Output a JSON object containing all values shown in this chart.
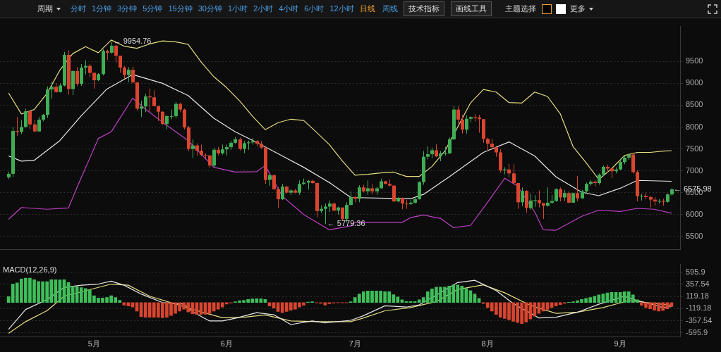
{
  "chart_data": [
    {
      "type": "candlestick",
      "x": [
        "--04-11",
        "--04-12",
        "--04-13",
        "--04-14",
        "--04-15",
        "--04-16",
        "--04-17",
        "--04-18",
        "--04-19",
        "--04-20",
        "--04-21",
        "--04-22",
        "--04-23",
        "--04-24",
        "--04-25",
        "--04-26",
        "--04-27",
        "--04-28",
        "--04-29",
        "--04-30",
        "--05-01",
        "--05-02",
        "--05-03",
        "--05-04",
        "--05-05",
        "--05-06",
        "--05-07",
        "--05-08",
        "--05-09",
        "--05-10",
        "--05-11",
        "--05-12",
        "--05-13",
        "--05-14",
        "--05-15",
        "--05-16",
        "--05-17",
        "--05-18",
        "--05-19",
        "--05-20",
        "--05-21",
        "--05-22",
        "--05-23",
        "--05-24",
        "--05-25",
        "--05-26",
        "--05-27",
        "--05-28",
        "--05-29",
        "--05-30",
        "--05-31",
        "--06-01",
        "--06-02",
        "--06-03",
        "--06-04",
        "--06-05",
        "--06-06",
        "--06-07",
        "--06-08",
        "--06-09",
        "--06-10",
        "--06-11",
        "--06-12",
        "--06-13",
        "--06-14",
        "--06-15",
        "--06-16",
        "--06-17",
        "--06-18",
        "--06-19",
        "--06-20",
        "--06-21",
        "--06-22",
        "--06-23",
        "--06-24",
        "--06-25",
        "--06-26",
        "--06-27",
        "--06-28",
        "--06-29",
        "--06-30",
        "--07-01",
        "--07-02",
        "--07-03",
        "--07-04",
        "--07-05",
        "--07-06",
        "--07-07",
        "--07-08",
        "--07-09",
        "--07-10",
        "--07-11",
        "--07-12",
        "--07-13",
        "--07-14",
        "--07-15",
        "--07-16",
        "--07-17",
        "--07-18",
        "--07-19",
        "--07-20",
        "--07-21",
        "--07-22",
        "--07-23",
        "--07-24",
        "--07-25",
        "--07-26",
        "--07-27",
        "--07-28",
        "--07-29",
        "--07-30",
        "--07-31",
        "--08-01",
        "--08-02",
        "--08-03",
        "--08-04",
        "--08-05",
        "--08-06",
        "--08-07",
        "--08-08",
        "--08-09",
        "--08-10",
        "--08-11",
        "--08-12",
        "--08-13",
        "--08-14",
        "--08-15",
        "--08-16",
        "--08-17",
        "--08-18",
        "--08-19",
        "--08-20",
        "--08-21",
        "--08-22",
        "--08-23",
        "--08-24",
        "--08-25",
        "--08-26",
        "--08-27",
        "--08-28",
        "--08-29",
        "--08-30",
        "--08-31",
        "--09-01",
        "--09-02",
        "--09-03",
        "--09-04",
        "--09-05",
        "--09-06",
        "--09-07",
        "--09-08",
        "--09-09",
        "--09-10",
        "--09-11",
        "--09-12",
        "--09-13"
      ],
      "ohlc": [
        [
          6850,
          6980,
          6810,
          6930
        ],
        [
          6930,
          8000,
          6860,
          7910
        ],
        [
          7910,
          8230,
          7800,
          7890
        ],
        [
          7890,
          8160,
          7840,
          8000
        ],
        [
          8000,
          8420,
          7990,
          8360
        ],
        [
          8360,
          8380,
          7950,
          8060
        ],
        [
          8060,
          8160,
          7880,
          7900
        ],
        [
          7900,
          8230,
          7890,
          8170
        ],
        [
          8170,
          8300,
          8130,
          8280
        ],
        [
          8280,
          8930,
          8210,
          8860
        ],
        [
          8860,
          9030,
          8650,
          8920
        ],
        [
          8920,
          9000,
          8780,
          8800
        ],
        [
          8800,
          9000,
          8790,
          8950
        ],
        [
          8950,
          9720,
          8930,
          9650
        ],
        [
          9650,
          9750,
          8740,
          8870
        ],
        [
          8870,
          9300,
          8730,
          9280
        ],
        [
          9280,
          9370,
          8940,
          8990
        ],
        [
          8990,
          9440,
          8940,
          9360
        ],
        [
          9360,
          9530,
          9200,
          9400
        ],
        [
          9400,
          9440,
          9140,
          9240
        ],
        [
          9240,
          9250,
          8880,
          9070
        ],
        [
          9070,
          9230,
          9050,
          9210
        ],
        [
          9210,
          9780,
          9180,
          9740
        ],
        [
          9740,
          9770,
          9530,
          9700
        ],
        [
          9700,
          9954.76,
          9680,
          9860
        ],
        [
          9860,
          9880,
          9480,
          9630
        ],
        [
          9630,
          9630,
          9240,
          9360
        ],
        [
          9360,
          9400,
          9100,
          9190
        ],
        [
          9190,
          9370,
          9030,
          9310
        ],
        [
          9310,
          9380,
          9000,
          9020
        ],
        [
          9020,
          9030,
          8380,
          8420
        ],
        [
          8420,
          8600,
          8230,
          8470
        ],
        [
          8470,
          8760,
          8340,
          8700
        ],
        [
          8700,
          8880,
          8350,
          8680
        ],
        [
          8680,
          8840,
          8470,
          8480
        ],
        [
          8480,
          8480,
          8140,
          8350
        ],
        [
          8350,
          8360,
          8050,
          8070
        ],
        [
          8070,
          8270,
          7950,
          8250
        ],
        [
          8250,
          8400,
          8180,
          8250
        ],
        [
          8250,
          8570,
          8200,
          8530
        ],
        [
          8530,
          8560,
          8340,
          8400
        ],
        [
          8400,
          8420,
          7950,
          7990
        ],
        [
          7990,
          8030,
          7450,
          7500
        ],
        [
          7500,
          7720,
          7290,
          7580
        ],
        [
          7580,
          7630,
          7350,
          7460
        ],
        [
          7460,
          7600,
          7340,
          7360
        ],
        [
          7360,
          7400,
          7260,
          7350
        ],
        [
          7350,
          7360,
          7070,
          7120
        ],
        [
          7120,
          7530,
          7070,
          7480
        ],
        [
          7480,
          7550,
          7350,
          7400
        ],
        [
          7400,
          7600,
          7370,
          7490
        ],
        [
          7490,
          7600,
          7350,
          7540
        ],
        [
          7540,
          7690,
          7480,
          7640
        ],
        [
          7640,
          7770,
          7620,
          7720
        ],
        [
          7720,
          7760,
          7460,
          7500
        ],
        [
          7500,
          7680,
          7400,
          7630
        ],
        [
          7630,
          7690,
          7480,
          7650
        ],
        [
          7650,
          7750,
          7600,
          7680
        ],
        [
          7680,
          7700,
          7560,
          7620
        ],
        [
          7620,
          7680,
          7500,
          7530
        ],
        [
          7530,
          7530,
          6700,
          6790
        ],
        [
          6790,
          6920,
          6650,
          6900
        ],
        [
          6900,
          6910,
          6560,
          6580
        ],
        [
          6580,
          6630,
          6150,
          6350
        ],
        [
          6350,
          6700,
          6330,
          6640
        ],
        [
          6640,
          6650,
          6480,
          6500
        ],
        [
          6500,
          6580,
          6440,
          6550
        ],
        [
          6550,
          6590,
          6480,
          6500
        ],
        [
          6500,
          6780,
          6450,
          6700
        ],
        [
          6700,
          6820,
          6680,
          6730
        ],
        [
          6730,
          6790,
          6570,
          6770
        ],
        [
          6770,
          6800,
          6700,
          6720
        ],
        [
          6720,
          6730,
          5930,
          6080
        ],
        [
          6080,
          6210,
          6030,
          6130
        ],
        [
          6130,
          6250,
          5779.36,
          6180
        ],
        [
          6180,
          6320,
          6060,
          6250
        ],
        [
          6250,
          6280,
          6070,
          6090
        ],
        [
          6090,
          6180,
          6000,
          6160
        ],
        [
          6160,
          6160,
          5860,
          5900
        ],
        [
          5900,
          6280,
          5820,
          6220
        ],
        [
          6220,
          6530,
          6210,
          6400
        ],
        [
          6400,
          6430,
          6280,
          6360
        ],
        [
          6360,
          6670,
          6280,
          6620
        ],
        [
          6620,
          6680,
          6510,
          6530
        ],
        [
          6530,
          6780,
          6450,
          6600
        ],
        [
          6600,
          6690,
          6460,
          6530
        ],
        [
          6530,
          6640,
          6450,
          6600
        ],
        [
          6600,
          6820,
          6590,
          6760
        ],
        [
          6760,
          6770,
          6690,
          6700
        ],
        [
          6700,
          6800,
          6640,
          6660
        ],
        [
          6660,
          6680,
          6280,
          6300
        ],
        [
          6300,
          6400,
          6280,
          6380
        ],
        [
          6380,
          6390,
          6120,
          6250
        ],
        [
          6250,
          6330,
          6130,
          6240
        ],
        [
          6240,
          6330,
          6220,
          6270
        ],
        [
          6270,
          6400,
          6250,
          6350
        ],
        [
          6350,
          6760,
          6340,
          6740
        ],
        [
          6740,
          7450,
          6680,
          7320
        ],
        [
          7320,
          7560,
          7260,
          7380
        ],
        [
          7380,
          7530,
          7290,
          7470
        ],
        [
          7470,
          7610,
          7310,
          7330
        ],
        [
          7330,
          7450,
          7220,
          7400
        ],
        [
          7400,
          7550,
          7350,
          7400
        ],
        [
          7400,
          7760,
          7380,
          7720
        ],
        [
          7720,
          8480,
          7700,
          8400
        ],
        [
          8400,
          8480,
          8080,
          8170
        ],
        [
          8170,
          8280,
          7850,
          7940
        ],
        [
          7940,
          8270,
          7850,
          8190
        ],
        [
          8190,
          8240,
          8110,
          8230
        ],
        [
          8230,
          8290,
          8130,
          8220
        ],
        [
          8220,
          8280,
          7870,
          8180
        ],
        [
          8180,
          8180,
          7640,
          7730
        ],
        [
          7730,
          7760,
          7450,
          7620
        ],
        [
          7620,
          7730,
          7480,
          7540
        ],
        [
          7540,
          7540,
          7320,
          7420
        ],
        [
          7420,
          7490,
          6960,
          7010
        ],
        [
          7010,
          7080,
          6920,
          7030
        ],
        [
          7030,
          7160,
          6850,
          6940
        ],
        [
          6940,
          7150,
          6690,
          6720
        ],
        [
          6720,
          6720,
          6130,
          6280
        ],
        [
          6280,
          6620,
          6190,
          6540
        ],
        [
          6540,
          6560,
          6040,
          6150
        ],
        [
          6150,
          6480,
          6110,
          6320
        ],
        [
          6320,
          6440,
          6170,
          6330
        ],
        [
          6330,
          6550,
          6160,
          6260
        ],
        [
          6260,
          6260,
          5900,
          6200
        ],
        [
          6200,
          6620,
          6180,
          6270
        ],
        [
          6270,
          6450,
          6240,
          6310
        ],
        [
          6310,
          6600,
          6290,
          6580
        ],
        [
          6580,
          6620,
          6300,
          6390
        ],
        [
          6390,
          6560,
          6310,
          6490
        ],
        [
          6490,
          6530,
          6260,
          6270
        ],
        [
          6270,
          6500,
          6270,
          6490
        ],
        [
          6490,
          6880,
          6300,
          6370
        ],
        [
          6370,
          6560,
          6360,
          6530
        ],
        [
          6530,
          6730,
          6480,
          6700
        ],
        [
          6700,
          6790,
          6660,
          6750
        ],
        [
          6750,
          6780,
          6640,
          6720
        ],
        [
          6720,
          6940,
          6680,
          6910
        ],
        [
          6910,
          7120,
          6880,
          7090
        ],
        [
          7090,
          7140,
          6960,
          7050
        ],
        [
          7050,
          7070,
          6830,
          6990
        ],
        [
          6990,
          7080,
          6940,
          7030
        ],
        [
          7030,
          7260,
          7010,
          7200
        ],
        [
          7200,
          7340,
          7150,
          7300
        ],
        [
          7300,
          7400,
          7250,
          7370
        ],
        [
          7370,
          7400,
          6940,
          6970
        ],
        [
          6970,
          7010,
          6300,
          6420
        ],
        [
          6420,
          6470,
          6320,
          6430
        ],
        [
          6430,
          6500,
          6350,
          6400
        ],
        [
          6400,
          6420,
          6160,
          6340
        ],
        [
          6340,
          6400,
          6200,
          6300
        ],
        [
          6300,
          6350,
          6250,
          6310
        ],
        [
          6310,
          6360,
          6200,
          6290
        ],
        [
          6290,
          6480,
          6270,
          6460
        ],
        [
          6460,
          6600,
          6430,
          6575.98
        ]
      ],
      "colors": [
        "#3fae55",
        "#3fae55",
        "#d9452f",
        "#3fae55",
        "#3fae55",
        "#d9452f",
        "#d9452f",
        "#3fae55",
        "#3fae55",
        "#3fae55",
        "#3fae55",
        "#d9452f",
        "#3fae55",
        "#3fae55",
        "#d9452f",
        "#3fae55",
        "#d9452f",
        "#3fae55",
        "#3fae55",
        "#d9452f",
        "#d9452f",
        "#3fae55",
        "#3fae55",
        "#d9452f",
        "#3fae55",
        "#d9452f",
        "#d9452f",
        "#d9452f",
        "#3fae55",
        "#d9452f",
        "#d9452f",
        "#3fae55",
        "#3fae55",
        "#d9452f",
        "#d9452f",
        "#d9452f",
        "#d9452f",
        "#3fae55",
        "#3fae55",
        "#3fae55",
        "#d9452f",
        "#d9452f",
        "#d9452f",
        "#3fae55",
        "#d9452f",
        "#d9452f",
        "#d9452f",
        "#d9452f",
        "#3fae55",
        "#d9452f",
        "#3fae55",
        "#3fae55",
        "#3fae55",
        "#3fae55",
        "#d9452f",
        "#3fae55",
        "#3fae55",
        "#3fae55",
        "#d9452f",
        "#d9452f",
        "#d9452f",
        "#3fae55",
        "#d9452f",
        "#d9452f",
        "#3fae55",
        "#d9452f",
        "#3fae55",
        "#d9452f",
        "#3fae55",
        "#3fae55",
        "#3fae55",
        "#d9452f",
        "#d9452f",
        "#3fae55",
        "#3fae55",
        "#3fae55",
        "#d9452f",
        "#3fae55",
        "#d9452f",
        "#3fae55",
        "#3fae55",
        "#d9452f",
        "#3fae55",
        "#d9452f",
        "#3fae55",
        "#d9452f",
        "#3fae55",
        "#3fae55",
        "#d9452f",
        "#d9452f",
        "#d9452f",
        "#3fae55",
        "#d9452f",
        "#d9452f",
        "#3fae55",
        "#3fae55",
        "#3fae55",
        "#3fae55",
        "#3fae55",
        "#3fae55",
        "#d9452f",
        "#3fae55",
        "#3fae55",
        "#3fae55",
        "#3fae55",
        "#d9452f",
        "#d9452f",
        "#3fae55",
        "#3fae55",
        "#d9452f",
        "#d9452f",
        "#d9452f",
        "#d9452f",
        "#d9452f",
        "#d9452f",
        "#d9452f",
        "#3fae55",
        "#d9452f",
        "#d9452f",
        "#d9452f",
        "#3fae55",
        "#d9452f",
        "#3fae55",
        "#3fae55",
        "#d9452f",
        "#d9452f",
        "#3fae55",
        "#3fae55",
        "#3fae55",
        "#d9452f",
        "#3fae55",
        "#d9452f",
        "#3fae55",
        "#d9452f",
        "#3fae55",
        "#3fae55",
        "#3fae55",
        "#d9452f",
        "#3fae55",
        "#3fae55",
        "#d9452f",
        "#d9452f",
        "#3fae55",
        "#3fae55",
        "#3fae55",
        "#3fae55",
        "#d9452f",
        "#d9452f",
        "#3fae55",
        "#d9452f",
        "#d9452f",
        "#d9452f",
        "#3fae55",
        "#d9452f",
        "#3fae55",
        "#3fae55"
      ],
      "series": [
        {
          "type": "line",
          "color": "#e6dc82",
          "x": [
            "--04-11",
            "--04-14",
            "--04-17",
            "--04-20",
            "--04-23",
            "--04-26",
            "--04-29",
            "--05-02",
            "--05-05",
            "--05-08",
            "--05-11",
            "--05-14",
            "--05-17",
            "--05-20",
            "--05-23",
            "--05-26",
            "--05-29",
            "--06-01",
            "--06-04",
            "--06-07",
            "--06-10",
            "--06-13",
            "--06-16",
            "--06-19",
            "--06-22",
            "--06-25",
            "--06-28",
            "--07-01",
            "--07-04",
            "--07-07",
            "--07-10",
            "--07-13",
            "--07-16",
            "--07-19",
            "--07-22",
            "--07-25",
            "--07-28",
            "--07-31",
            "--08-03",
            "--08-06",
            "--08-09",
            "--08-12",
            "--08-15",
            "--08-18",
            "--08-21",
            "--08-24",
            "--08-27",
            "--08-30",
            "--09-02",
            "--09-05",
            "--09-08",
            "--09-11",
            "--09-13"
          ],
          "values": [
            8780,
            8300,
            8400,
            8770,
            9300,
            9680,
            9840,
            9700,
            9990,
            9850,
            9800,
            9900,
            9970,
            9950,
            9890,
            9490,
            9150,
            8900,
            8600,
            8250,
            7940,
            8100,
            8180,
            8150,
            7880,
            7600,
            7230,
            6900,
            6920,
            6950,
            6970,
            6870,
            6870,
            7100,
            7450,
            8000,
            8550,
            8860,
            8800,
            8560,
            8550,
            8800,
            8700,
            8300,
            7550,
            7190,
            6800,
            7050,
            7350,
            7420,
            7420,
            7450,
            7460
          ]
        },
        {
          "type": "line",
          "color": "#e8e8e8",
          "x": [
            "--04-11",
            "--04-14",
            "--04-17",
            "--04-23",
            "--04-28",
            "--05-04",
            "--05-10",
            "--05-17",
            "--05-23",
            "--05-29",
            "--06-03",
            "--06-08",
            "--06-14",
            "--06-19",
            "--06-25",
            "--06-30",
            "--07-08",
            "--07-14",
            "--07-17",
            "--07-23",
            "--07-31",
            "--08-06",
            "--08-12",
            "--08-17",
            "--08-23",
            "--08-27",
            "--09-01",
            "--09-05",
            "--09-13"
          ],
          "values": [
            7340,
            7220,
            7240,
            7690,
            8260,
            8870,
            9200,
            9000,
            8720,
            8200,
            7890,
            7650,
            7340,
            7080,
            6730,
            6390,
            6370,
            6360,
            6460,
            6860,
            7420,
            7660,
            7340,
            6860,
            6510,
            6430,
            6600,
            6780,
            6760
          ]
        },
        {
          "type": "line",
          "color": "#c040c8",
          "x": [
            "--04-11",
            "--04-14",
            "--04-20",
            "--04-25",
            "--04-27",
            "--05-02",
            "--05-05",
            "--05-10",
            "--05-13",
            "--05-17",
            "--05-23",
            "--05-29",
            "--06-03",
            "--06-08",
            "--06-10",
            "--06-14",
            "--06-19",
            "--06-25",
            "--06-30",
            "--07-01",
            "--07-12",
            "--07-14",
            "--07-17",
            "--07-21",
            "--07-24",
            "--07-28",
            "--08-01",
            "--08-05",
            "--08-08",
            "--08-12",
            "--08-14",
            "--08-17",
            "--08-23",
            "--08-27",
            "--09-01",
            "--09-05",
            "--09-09",
            "--09-13"
          ],
          "values": [
            5890,
            6160,
            6120,
            6150,
            6620,
            7740,
            7890,
            8660,
            8410,
            8110,
            7690,
            7080,
            6970,
            6980,
            7120,
            6420,
            6000,
            5650,
            5740,
            5820,
            5820,
            5930,
            5990,
            5910,
            5700,
            5750,
            6280,
            6830,
            6650,
            6060,
            5650,
            5640,
            5960,
            6100,
            6070,
            6140,
            6120,
            6030
          ]
        }
      ],
      "xlim": [
        "--04-09",
        "--09-15"
      ],
      "ylim": [
        5200,
        10300
      ],
      "yticks": [
        5500,
        6000,
        6500,
        7000,
        7500,
        8000,
        8500,
        9000,
        9500
      ],
      "grid": "y",
      "tick_labels": "y",
      "annotations": [
        "周期",
        "分时",
        "1分钟",
        "3分钟",
        "5分钟",
        "15分钟",
        "30分钟",
        "1小时",
        "2小时",
        "4小时",
        "6小时",
        "12小时",
        "日线",
        "周线",
        "技术指标",
        "画线工具",
        "主题选择",
        "更多",
        {
          "text": "← 9954.76",
          "x": "--05-05",
          "y": 9954.76
        },
        {
          "text": "← 5779.36",
          "x": "--06-24",
          "y": 5779.36
        },
        {
          "text": "← 6575.98",
          "x": "--09-13",
          "y": 6575.98
        }
      ]
    },
    {
      "type": "bar",
      "title": "MACD(12,26,9)",
      "x": [
        "--04-11",
        "--04-12",
        "--04-13",
        "--04-14",
        "--04-15",
        "--04-16",
        "--04-17",
        "--04-18",
        "--04-19",
        "--04-20",
        "--04-21",
        "--04-22",
        "--04-23",
        "--04-24",
        "--04-25",
        "--04-26",
        "--04-27",
        "--04-28",
        "--04-29",
        "--04-30",
        "--05-01",
        "--05-02",
        "--05-03",
        "--05-04",
        "--05-05",
        "--05-06",
        "--05-07",
        "--05-08",
        "--05-09",
        "--05-10",
        "--05-11",
        "--05-12",
        "--05-13",
        "--05-14",
        "--05-15",
        "--05-16",
        "--05-17",
        "--05-18",
        "--05-19",
        "--05-20",
        "--05-21",
        "--05-22",
        "--05-23",
        "--05-24",
        "--05-25",
        "--05-26",
        "--05-27",
        "--05-28",
        "--05-29",
        "--05-30",
        "--05-31",
        "--06-01",
        "--06-02",
        "--06-03",
        "--06-04",
        "--06-05",
        "--06-06",
        "--06-07",
        "--06-08",
        "--06-09",
        "--06-10",
        "--06-11",
        "--06-12",
        "--06-13",
        "--06-14",
        "--06-15",
        "--06-16",
        "--06-17",
        "--06-18",
        "--06-19",
        "--06-20",
        "--06-21",
        "--06-22",
        "--06-23",
        "--06-24",
        "--06-25",
        "--06-26",
        "--06-27",
        "--06-28",
        "--06-29",
        "--06-30",
        "--07-01",
        "--07-02",
        "--07-03",
        "--07-04",
        "--07-05",
        "--07-06",
        "--07-07",
        "--07-08",
        "--07-09",
        "--07-10",
        "--07-11",
        "--07-12",
        "--07-13",
        "--07-14",
        "--07-15",
        "--07-16",
        "--07-17",
        "--07-18",
        "--07-19",
        "--07-20",
        "--07-21",
        "--07-22",
        "--07-23",
        "--07-24",
        "--07-25",
        "--07-26",
        "--07-27",
        "--07-28",
        "--07-29",
        "--07-30",
        "--07-31",
        "--08-01",
        "--08-02",
        "--08-03",
        "--08-04",
        "--08-05",
        "--08-06",
        "--08-07",
        "--08-08",
        "--08-09",
        "--08-10",
        "--08-11",
        "--08-12",
        "--08-13",
        "--08-14",
        "--08-15",
        "--08-16",
        "--08-17",
        "--08-18",
        "--08-19",
        "--08-20",
        "--08-21",
        "--08-22",
        "--08-23",
        "--08-24",
        "--08-25",
        "--08-26",
        "--08-27",
        "--08-28",
        "--08-29",
        "--08-30",
        "--08-31",
        "--09-01",
        "--09-02",
        "--09-03",
        "--09-04",
        "--09-05",
        "--09-06",
        "--09-07",
        "--09-08",
        "--09-09",
        "--09-10",
        "--09-11",
        "--09-12",
        "--09-13"
      ],
      "series": [
        {
          "type": "bar",
          "values": [
            115,
            363,
            385,
            463,
            480,
            480,
            450,
            415,
            410,
            410,
            450,
            450,
            445,
            450,
            394,
            320,
            310,
            292,
            274,
            250,
            133,
            90,
            90,
            100,
            133,
            100,
            45,
            -50,
            -70,
            -90,
            -170,
            -280,
            -290,
            -290,
            -290,
            -290,
            -300,
            -290,
            -255,
            -215,
            -170,
            -130,
            -185,
            -220,
            -235,
            -235,
            -230,
            -215,
            -170,
            -130,
            -90,
            -30,
            -10,
            15,
            35,
            45,
            60,
            70,
            75,
            75,
            60,
            -70,
            -110,
            -175,
            -200,
            -175,
            -150,
            -130,
            -90,
            -55,
            10,
            15,
            -5,
            -15,
            -50,
            -25,
            -10,
            -5,
            -5,
            -5,
            15,
            100,
            170,
            215,
            227,
            227,
            227,
            227,
            215,
            215,
            155,
            110,
            55,
            20,
            20,
            20,
            55,
            100,
            215,
            270,
            305,
            305,
            305,
            325,
            345,
            345,
            325,
            280,
            235,
            170,
            80,
            -20,
            -100,
            -170,
            -235,
            -290,
            -315,
            -340,
            -370,
            -395,
            -415,
            -385,
            -325,
            -270,
            -215,
            -170,
            -135,
            -100,
            -70,
            -40,
            -15,
            5,
            15,
            35,
            60,
            80,
            100,
            125,
            150,
            170,
            190,
            200,
            200,
            200,
            215,
            215,
            150,
            55,
            -55,
            -100,
            -125,
            -150,
            -170,
            -160,
            -125,
            -80
          ],
          "colors": [
            "#3fbf5a",
            "#3fbf5a",
            "#3fbf5a",
            "#3fbf5a",
            "#3fbf5a",
            "#3fbf5a",
            "#3fbf5a",
            "#3fbf5a",
            "#3fbf5a",
            "#3fbf5a",
            "#3fbf5a",
            "#3fbf5a",
            "#3fbf5a",
            "#3fbf5a",
            "#3fbf5a",
            "#3fbf5a",
            "#3fbf5a",
            "#3fbf5a",
            "#3fbf5a",
            "#3fbf5a",
            "#3fbf5a",
            "#3fbf5a",
            "#3fbf5a",
            "#3fbf5a",
            "#3fbf5a",
            "#3fbf5a",
            "#3fbf5a",
            "#d9452f",
            "#d9452f",
            "#d9452f",
            "#d9452f",
            "#d9452f",
            "#d9452f",
            "#d9452f",
            "#d9452f",
            "#d9452f",
            "#d9452f",
            "#d9452f",
            "#d9452f",
            "#d9452f",
            "#d9452f",
            "#d9452f",
            "#d9452f",
            "#d9452f",
            "#d9452f",
            "#d9452f",
            "#d9452f",
            "#d9452f",
            "#d9452f",
            "#d9452f",
            "#d9452f",
            "#d9452f",
            "#d9452f",
            "#3fbf5a",
            "#3fbf5a",
            "#3fbf5a",
            "#3fbf5a",
            "#3fbf5a",
            "#3fbf5a",
            "#3fbf5a",
            "#3fbf5a",
            "#d9452f",
            "#d9452f",
            "#d9452f",
            "#d9452f",
            "#d9452f",
            "#d9452f",
            "#d9452f",
            "#d9452f",
            "#d9452f",
            "#3fbf5a",
            "#3fbf5a",
            "#d9452f",
            "#d9452f",
            "#d9452f",
            "#d9452f",
            "#d9452f",
            "#d9452f",
            "#d9452f",
            "#d9452f",
            "#3fbf5a",
            "#3fbf5a",
            "#3fbf5a",
            "#3fbf5a",
            "#3fbf5a",
            "#3fbf5a",
            "#3fbf5a",
            "#3fbf5a",
            "#3fbf5a",
            "#3fbf5a",
            "#3fbf5a",
            "#3fbf5a",
            "#3fbf5a",
            "#3fbf5a",
            "#3fbf5a",
            "#3fbf5a",
            "#3fbf5a",
            "#3fbf5a",
            "#3fbf5a",
            "#3fbf5a",
            "#3fbf5a",
            "#3fbf5a",
            "#3fbf5a",
            "#3fbf5a",
            "#3fbf5a",
            "#3fbf5a",
            "#3fbf5a",
            "#3fbf5a",
            "#3fbf5a",
            "#3fbf5a",
            "#3fbf5a",
            "#d9452f",
            "#d9452f",
            "#d9452f",
            "#d9452f",
            "#d9452f",
            "#d9452f",
            "#d9452f",
            "#d9452f",
            "#d9452f",
            "#d9452f",
            "#d9452f",
            "#d9452f",
            "#d9452f",
            "#d9452f",
            "#d9452f",
            "#d9452f",
            "#d9452f",
            "#d9452f",
            "#d9452f",
            "#d9452f",
            "#3fbf5a",
            "#3fbf5a",
            "#3fbf5a",
            "#3fbf5a",
            "#3fbf5a",
            "#3fbf5a",
            "#3fbf5a",
            "#3fbf5a",
            "#3fbf5a",
            "#3fbf5a",
            "#3fbf5a",
            "#3fbf5a",
            "#3fbf5a",
            "#3fbf5a",
            "#3fbf5a",
            "#3fbf5a",
            "#3fbf5a",
            "#d9452f",
            "#d9452f",
            "#d9452f",
            "#d9452f",
            "#d9452f",
            "#d9452f",
            "#d9452f",
            "#d9452f"
          ]
        },
        {
          "type": "line",
          "color": "#e8e8e8",
          "x": [
            "--04-11",
            "--04-15",
            "--04-20",
            "--04-24",
            "--04-28",
            "--05-02",
            "--05-05",
            "--05-08",
            "--05-12",
            "--05-17",
            "--05-22",
            "--05-24",
            "--05-28",
            "--05-31",
            "--06-03",
            "--06-08",
            "--06-12",
            "--06-16",
            "--06-21",
            "--06-24",
            "--06-30",
            "--07-03",
            "--07-08",
            "--07-13",
            "--07-16",
            "--07-20",
            "--07-25",
            "--07-29",
            "--08-03",
            "--08-07",
            "--08-13",
            "--08-17",
            "--08-22",
            "--08-27",
            "--09-02",
            "--09-04",
            "--09-08",
            "--09-11",
            "--09-13"
          ],
          "values": [
            -528,
            -137,
            59,
            297,
            341,
            363,
            420,
            341,
            167,
            0,
            -30,
            -180,
            -363,
            -363,
            -310,
            -200,
            -240,
            -433,
            -363,
            -400,
            -350,
            -258,
            -65,
            -90,
            -45,
            146,
            394,
            438,
            236,
            -20,
            -304,
            -290,
            -190,
            -33,
            124,
            60,
            -25,
            -100,
            -80
          ]
        },
        {
          "type": "line",
          "color": "#e6dc82",
          "x": [
            "--04-11",
            "--04-15",
            "--04-20",
            "--04-24",
            "--05-02",
            "--05-05",
            "--05-09",
            "--05-14",
            "--05-20",
            "--05-25",
            "--05-31",
            "--06-05",
            "--06-10",
            "--06-16",
            "--06-22",
            "--06-30",
            "--07-03",
            "--07-08",
            "--07-14",
            "--07-20",
            "--07-25",
            "--07-31",
            "--08-05",
            "--08-11",
            "--08-17",
            "--08-22",
            "--08-28",
            "--09-03",
            "--09-08",
            "--09-13"
          ],
          "values": [
            -606,
            -376,
            -159,
            124,
            297,
            363,
            341,
            124,
            -30,
            -159,
            -300,
            -290,
            -245,
            -363,
            -376,
            -376,
            -304,
            -163,
            -100,
            18,
            258,
            348,
            192,
            -55,
            -214,
            -190,
            -100,
            38,
            -10,
            -55
          ]
        }
      ],
      "xlim": [
        "--04-09",
        "--09-15"
      ],
      "xticks": [
        {
          "value": "--05-01",
          "label": "5月"
        },
        {
          "value": "--06-01",
          "label": "6月"
        },
        {
          "value": "--07-01",
          "label": "7月"
        },
        {
          "value": "--08-01",
          "label": "8月"
        },
        {
          "value": "--09-01",
          "label": "9月"
        }
      ],
      "ylim": [
        -680,
        750
      ],
      "yticks": [
        595.9,
        357.54,
        119.18,
        -119.18,
        -357.54,
        -595.9
      ],
      "grid": "y"
    }
  ]
}
